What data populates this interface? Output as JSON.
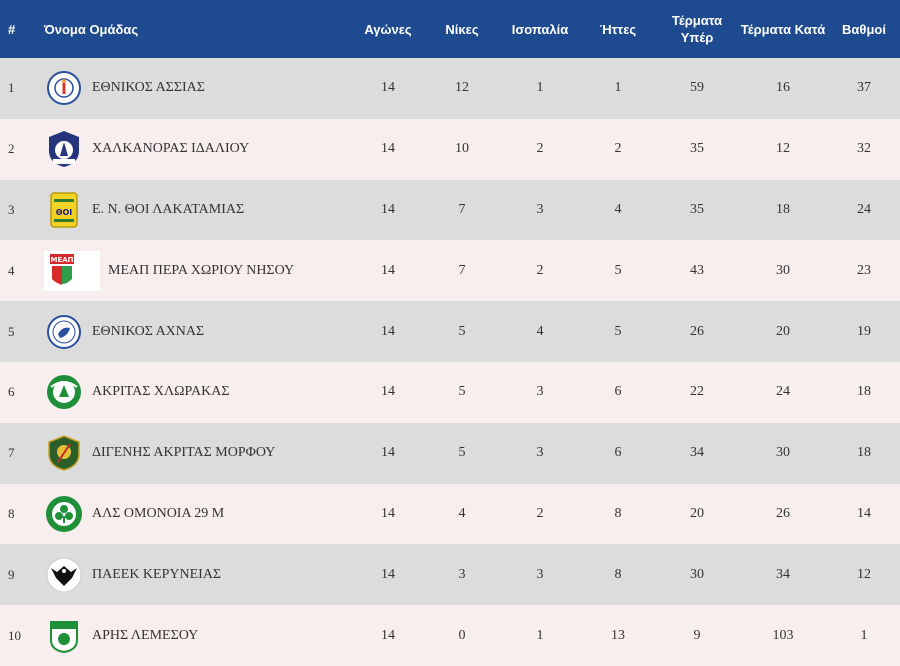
{
  "headers": {
    "num": "#",
    "team": "Όνομα Ομάδας",
    "played": "Αγώνες",
    "wins": "Νίκες",
    "draws": "Ισοπαλία",
    "losses": "Ήττες",
    "gf": "Τέρματα Υπέρ",
    "ga": "Τέρματα Κατά",
    "points": "Βαθμοί"
  },
  "colors": {
    "header_bg": "#1e4b8f",
    "row_odd": "#dcdcdc",
    "row_even": "#f8eeee"
  },
  "rows": [
    {
      "pos": "1",
      "team": "ΕΘΝΙΚΟΣ ΑΣΣΙΑΣ",
      "logo": "ethnikos-assias-crest",
      "played": "14",
      "wins": "12",
      "draws": "1",
      "losses": "1",
      "gf": "59",
      "ga": "16",
      "points": "37"
    },
    {
      "pos": "2",
      "team": "ΧΑΛΚΑΝΟΡΑΣ ΙΔΑΛΙΟΥ",
      "logo": "chalkanoras-crest",
      "played": "14",
      "wins": "10",
      "draws": "2",
      "losses": "2",
      "gf": "35",
      "ga": "12",
      "points": "32"
    },
    {
      "pos": "3",
      "team": "Ε. Ν. ΘΟΙ ΛΑΚΑΤΑΜΙΑΣ",
      "logo": "thoi-crest",
      "played": "14",
      "wins": "7",
      "draws": "3",
      "losses": "4",
      "gf": "35",
      "ga": "18",
      "points": "24"
    },
    {
      "pos": "4",
      "team": "ΜΕΑΠ ΠΕΡΑ ΧΩΡΙΟΥ ΝΗΣΟΥ",
      "logo": "meap-crest",
      "played": "14",
      "wins": "7",
      "draws": "2",
      "losses": "5",
      "gf": "43",
      "ga": "30",
      "points": "23"
    },
    {
      "pos": "5",
      "team": "ΕΘΝΙΚΟΣ ΑΧΝΑΣ",
      "logo": "ethnikos-achnas-crest",
      "played": "14",
      "wins": "5",
      "draws": "4",
      "losses": "5",
      "gf": "26",
      "ga": "20",
      "points": "19"
    },
    {
      "pos": "6",
      "team": "ΑΚΡΙΤΑΣ ΧΛΩΡΑΚΑΣ",
      "logo": "akritas-crest",
      "played": "14",
      "wins": "5",
      "draws": "3",
      "losses": "6",
      "gf": "22",
      "ga": "24",
      "points": "18"
    },
    {
      "pos": "7",
      "team": "ΔΙΓΕΝΗΣ ΑΚΡΙΤΑΣ ΜΟΡΦΟΥ",
      "logo": "digenis-crest",
      "played": "14",
      "wins": "5",
      "draws": "3",
      "losses": "6",
      "gf": "34",
      "ga": "30",
      "points": "18"
    },
    {
      "pos": "8",
      "team": "ΑΛΣ ΟΜΟΝΟΙΑ 29 Μ",
      "logo": "omonoia-crest",
      "played": "14",
      "wins": "4",
      "draws": "2",
      "losses": "8",
      "gf": "20",
      "ga": "26",
      "points": "14"
    },
    {
      "pos": "9",
      "team": "ΠΑΕΕΚ ΚΕΡΥΝΕΙΑΣ",
      "logo": "paeek-crest",
      "played": "14",
      "wins": "3",
      "draws": "3",
      "losses": "8",
      "gf": "30",
      "ga": "34",
      "points": "12"
    },
    {
      "pos": "10",
      "team": "ΑΡΗΣ ΛΕΜΕΣΟΥ",
      "logo": "aris-crest",
      "played": "14",
      "wins": "0",
      "draws": "1",
      "losses": "13",
      "gf": "9",
      "ga": "103",
      "points": "1"
    }
  ]
}
